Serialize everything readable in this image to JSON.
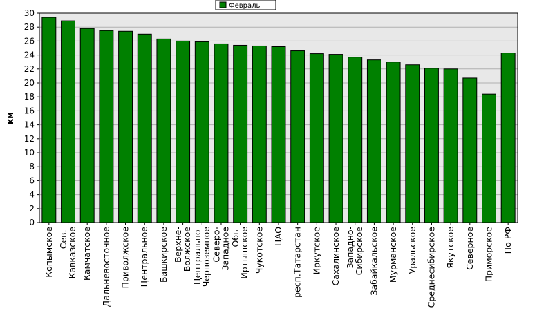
{
  "chart_data": {
    "type": "bar",
    "ylabel": "км",
    "ylim": [
      0,
      30
    ],
    "ytick_step": 2,
    "grid": true,
    "legend_position": "top",
    "categories": [
      "Копымское",
      "Сев.-Кавказское",
      "Камчатское",
      "Дальневосточное",
      "Приволжское",
      "Центральное",
      "Башкирское",
      "Верхне-Волжское",
      "Центрально-Черноземное",
      "Северо-Западное",
      "Обь-Иртышское",
      "Чукотское",
      "ЦАО",
      "респ.Татарстан",
      "Иркутское",
      "Сахалинское",
      "Западно-Сибирское",
      "Забайкальское",
      "Мурманское",
      "Уральское",
      "Среднесибирское",
      "Якутское",
      "Северное",
      "Приморское",
      "По РФ"
    ],
    "series": [
      {
        "name": "Февраль",
        "color": "#008000",
        "values": [
          29.4,
          28.9,
          27.8,
          27.5,
          27.4,
          27.0,
          26.3,
          26.0,
          25.9,
          25.6,
          25.4,
          25.3,
          25.2,
          24.6,
          24.2,
          24.1,
          23.7,
          23.3,
          23.0,
          22.6,
          22.1,
          22.0,
          20.7,
          18.4,
          24.3
        ]
      }
    ],
    "colors": {
      "plot_background": "#e8e8e8",
      "gridline": "#b0b0b0",
      "bar_outline": "#000000"
    }
  }
}
